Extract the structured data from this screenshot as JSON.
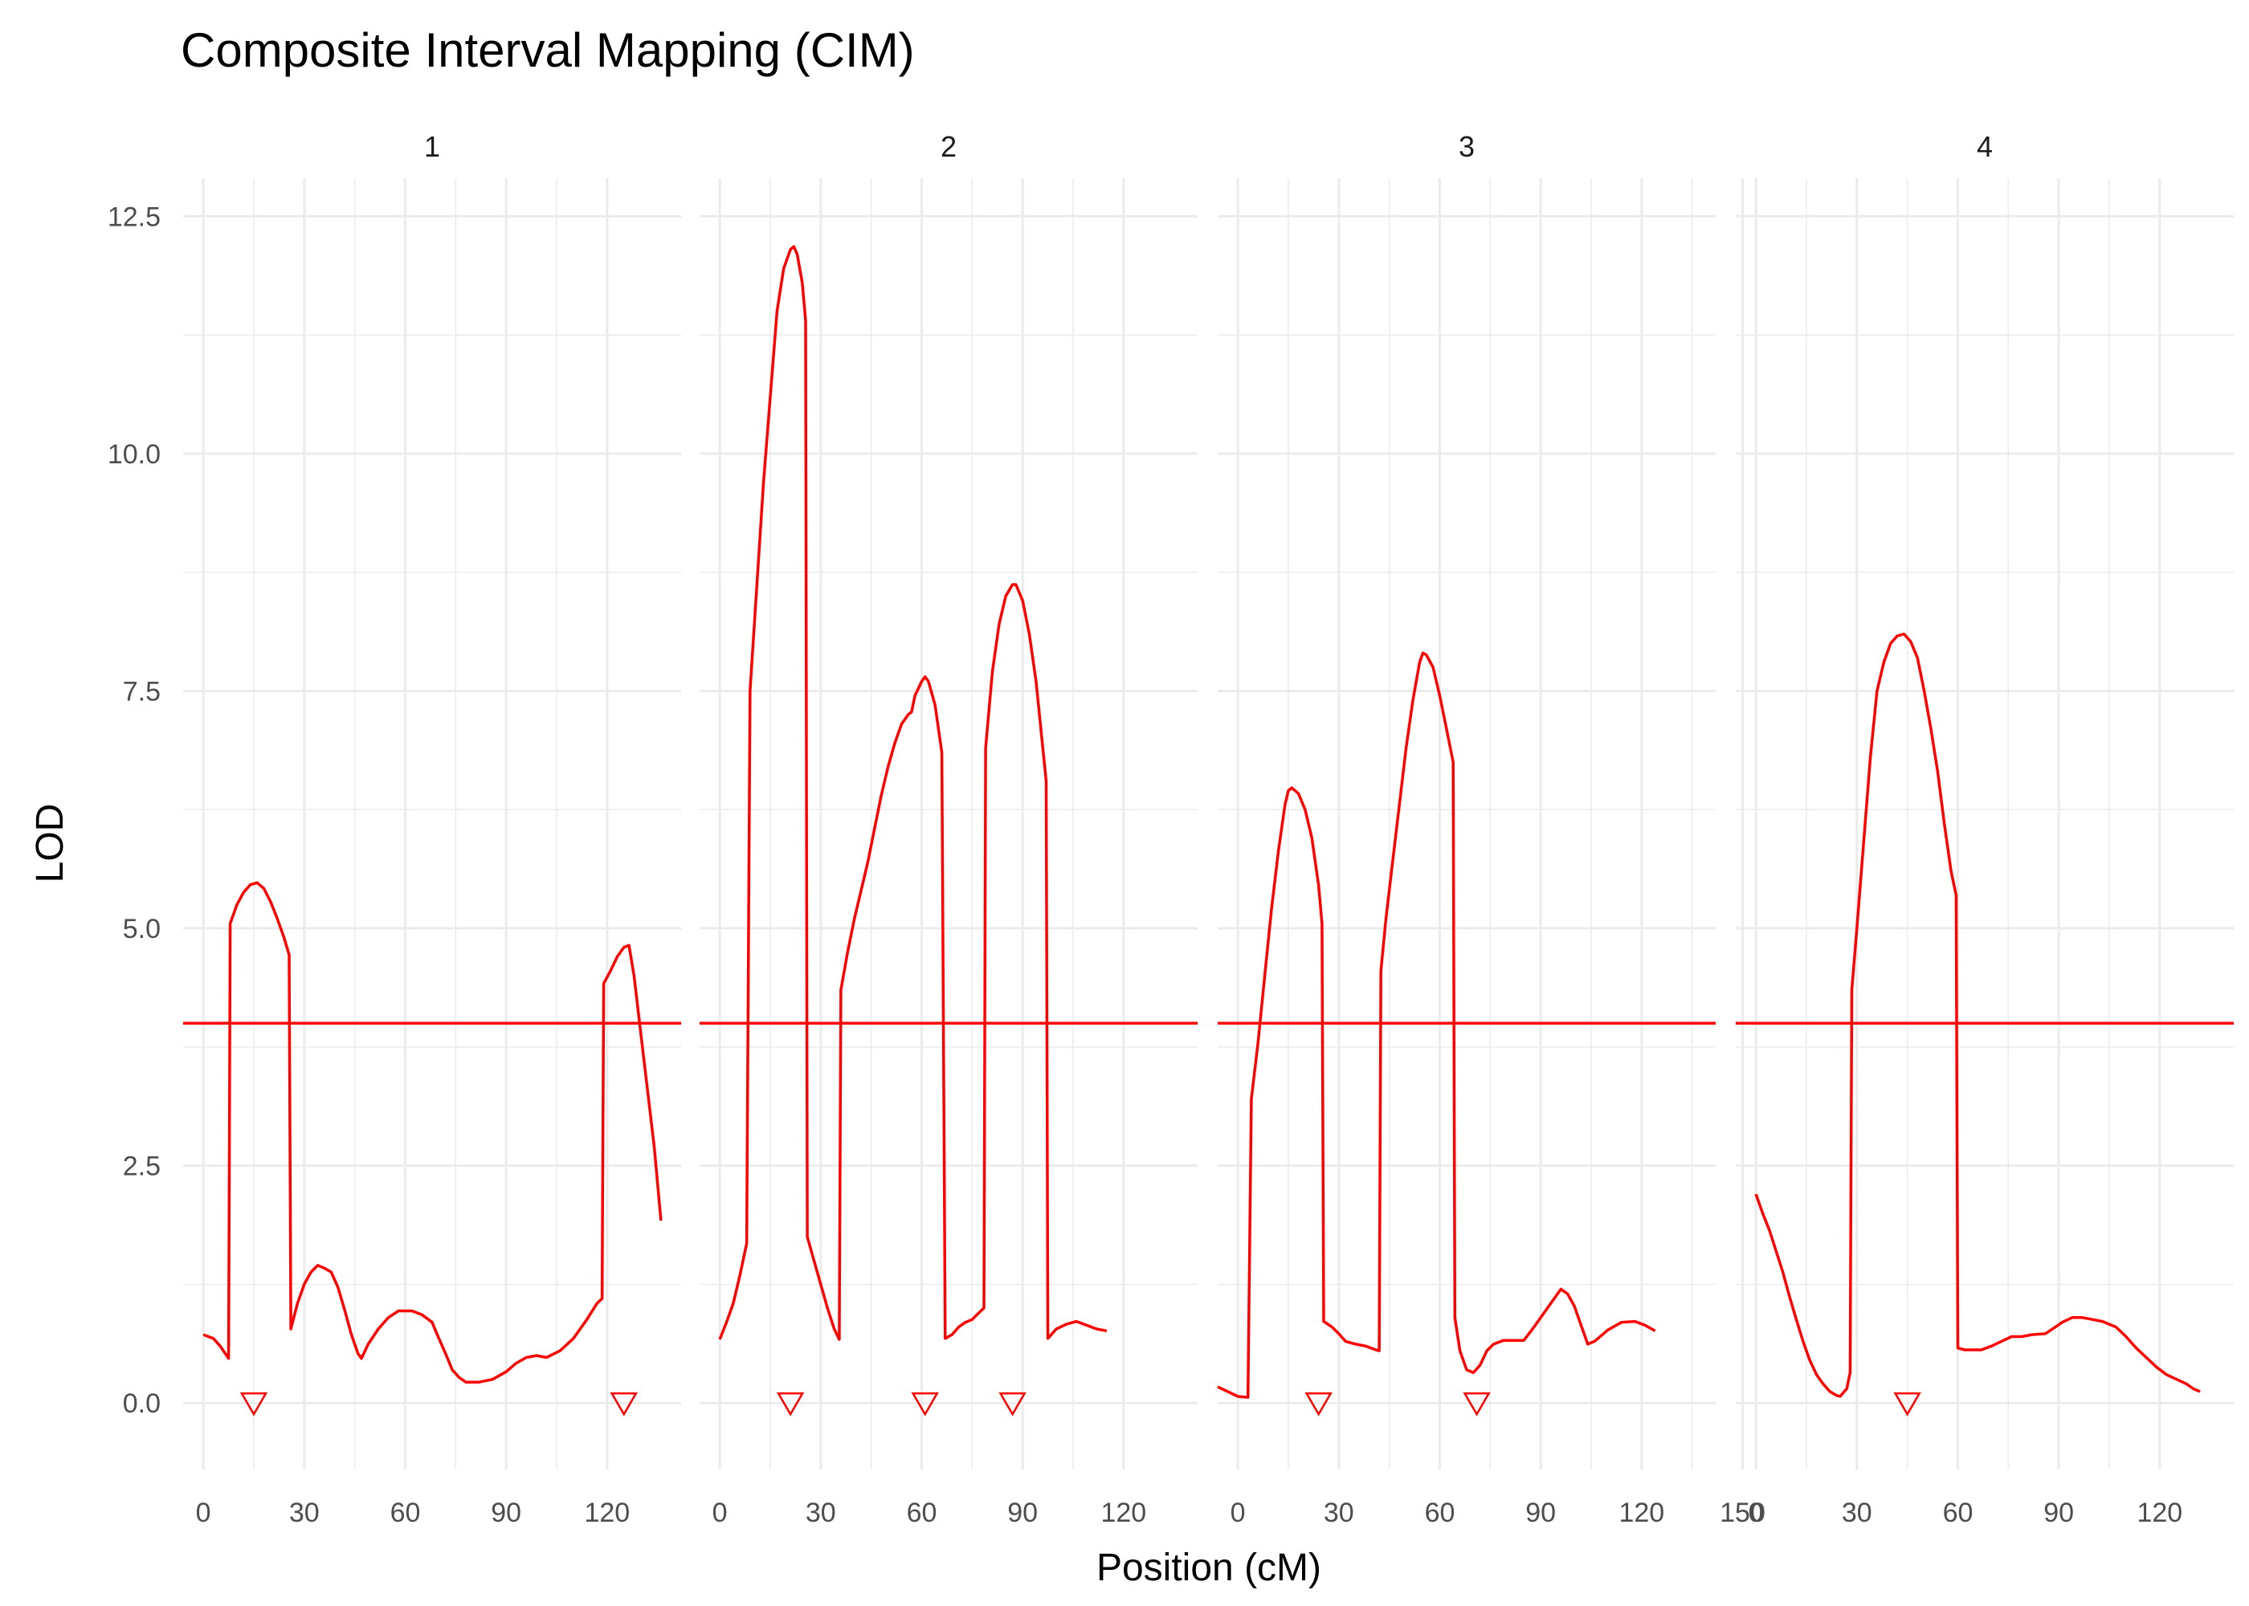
{
  "chart_data": {
    "type": "line",
    "title": "Composite Interval Mapping (CIM)",
    "xlabel": "Position (cM)",
    "ylabel": "LOD",
    "ylim": [
      -0.7,
      12.9
    ],
    "yticks": [
      0.0,
      2.5,
      5.0,
      7.5,
      10.0,
      12.5
    ],
    "ytick_labels": [
      "0.0",
      "2.5",
      "5.0",
      "7.5",
      "10.0",
      "12.5"
    ],
    "threshold": 4.0,
    "grid": true,
    "colors": {
      "line": "#ff0000",
      "grid": "#ebebeb",
      "text": "#4d4d4d"
    },
    "panels": [
      {
        "label": "1",
        "xlim": [
          -6,
          142
        ],
        "xticks": [
          0,
          30,
          60,
          90,
          120
        ],
        "xtick_labels": [
          "0",
          "30",
          "60",
          "90",
          "120"
        ],
        "markers": [
          15,
          125
        ],
        "points": [
          [
            0,
            0.72
          ],
          [
            3,
            0.68
          ],
          [
            5,
            0.6
          ],
          [
            7.5,
            0.47
          ],
          [
            8,
            5.05
          ],
          [
            10,
            5.25
          ],
          [
            12,
            5.38
          ],
          [
            14,
            5.46
          ],
          [
            16,
            5.48
          ],
          [
            18,
            5.42
          ],
          [
            20,
            5.28
          ],
          [
            22,
            5.1
          ],
          [
            24,
            4.9
          ],
          [
            25.5,
            4.72
          ],
          [
            26,
            0.78
          ],
          [
            28,
            1.05
          ],
          [
            30,
            1.25
          ],
          [
            32,
            1.38
          ],
          [
            34,
            1.45
          ],
          [
            36,
            1.42
          ],
          [
            38,
            1.38
          ],
          [
            40,
            1.22
          ],
          [
            42,
            0.98
          ],
          [
            44,
            0.72
          ],
          [
            46,
            0.52
          ],
          [
            47,
            0.47
          ],
          [
            49,
            0.62
          ],
          [
            52,
            0.78
          ],
          [
            55,
            0.9
          ],
          [
            58,
            0.97
          ],
          [
            62,
            0.97
          ],
          [
            65,
            0.93
          ],
          [
            68,
            0.85
          ],
          [
            70,
            0.68
          ],
          [
            72,
            0.52
          ],
          [
            74,
            0.35
          ],
          [
            76,
            0.27
          ],
          [
            78,
            0.22
          ],
          [
            82,
            0.22
          ],
          [
            86,
            0.25
          ],
          [
            90,
            0.33
          ],
          [
            93,
            0.42
          ],
          [
            96,
            0.48
          ],
          [
            99,
            0.5
          ],
          [
            102,
            0.48
          ],
          [
            106,
            0.55
          ],
          [
            110,
            0.68
          ],
          [
            114,
            0.88
          ],
          [
            117,
            1.05
          ],
          [
            118.5,
            1.1
          ],
          [
            119,
            4.42
          ],
          [
            121,
            4.55
          ],
          [
            123,
            4.7
          ],
          [
            125,
            4.8
          ],
          [
            126.5,
            4.82
          ],
          [
            128,
            4.5
          ],
          [
            130,
            3.9
          ],
          [
            132,
            3.3
          ],
          [
            134,
            2.7
          ],
          [
            136,
            1.92
          ]
        ]
      },
      {
        "label": "2",
        "xlim": [
          -6,
          142
        ],
        "xticks": [
          0,
          30,
          60,
          90,
          120
        ],
        "xtick_labels": [
          "0",
          "30",
          "60",
          "90",
          "120"
        ],
        "markers": [
          21,
          61,
          87
        ],
        "points": [
          [
            0,
            0.67
          ],
          [
            2,
            0.85
          ],
          [
            4,
            1.05
          ],
          [
            6,
            1.35
          ],
          [
            8,
            1.68
          ],
          [
            9,
            7.5
          ],
          [
            11,
            8.6
          ],
          [
            13,
            9.7
          ],
          [
            15,
            10.6
          ],
          [
            17,
            11.5
          ],
          [
            19,
            11.95
          ],
          [
            21,
            12.15
          ],
          [
            22,
            12.18
          ],
          [
            23,
            12.1
          ],
          [
            24.5,
            11.8
          ],
          [
            25.5,
            11.4
          ],
          [
            26,
            1.75
          ],
          [
            28,
            1.5
          ],
          [
            30,
            1.25
          ],
          [
            32,
            1.0
          ],
          [
            34,
            0.78
          ],
          [
            35.5,
            0.67
          ],
          [
            36,
            4.35
          ],
          [
            38,
            4.75
          ],
          [
            40,
            5.1
          ],
          [
            42,
            5.4
          ],
          [
            44,
            5.7
          ],
          [
            46,
            6.05
          ],
          [
            48,
            6.4
          ],
          [
            50,
            6.7
          ],
          [
            52,
            6.95
          ],
          [
            54,
            7.15
          ],
          [
            56,
            7.25
          ],
          [
            57,
            7.28
          ],
          [
            58,
            7.45
          ],
          [
            60,
            7.6
          ],
          [
            61,
            7.65
          ],
          [
            62,
            7.6
          ],
          [
            64,
            7.35
          ],
          [
            66,
            6.85
          ],
          [
            67,
            0.68
          ],
          [
            69,
            0.72
          ],
          [
            71,
            0.8
          ],
          [
            73,
            0.85
          ],
          [
            75,
            0.88
          ],
          [
            77,
            0.95
          ],
          [
            78.5,
            1.0
          ],
          [
            79,
            6.9
          ],
          [
            81,
            7.7
          ],
          [
            83,
            8.2
          ],
          [
            85,
            8.5
          ],
          [
            87,
            8.62
          ],
          [
            88,
            8.62
          ],
          [
            90,
            8.45
          ],
          [
            92,
            8.1
          ],
          [
            94,
            7.6
          ],
          [
            96,
            6.9
          ],
          [
            97,
            6.55
          ],
          [
            97.5,
            0.68
          ],
          [
            100,
            0.78
          ],
          [
            103,
            0.83
          ],
          [
            106,
            0.86
          ],
          [
            109,
            0.82
          ],
          [
            112,
            0.78
          ],
          [
            115,
            0.76
          ]
        ]
      },
      {
        "label": "3",
        "xlim": [
          -6,
          142
        ],
        "xticks": [
          0,
          30,
          60,
          90,
          120,
          150
        ],
        "xtick_labels": [
          "0",
          "30",
          "60",
          "90",
          "120",
          "150"
        ],
        "markers": [
          24,
          71
        ],
        "points": [
          [
            -6,
            0.17
          ],
          [
            -3,
            0.12
          ],
          [
            0,
            0.07
          ],
          [
            3,
            0.06
          ],
          [
            4,
            3.2
          ],
          [
            6,
            3.8
          ],
          [
            8,
            4.5
          ],
          [
            10,
            5.2
          ],
          [
            12,
            5.8
          ],
          [
            14,
            6.3
          ],
          [
            15,
            6.45
          ],
          [
            16,
            6.48
          ],
          [
            18,
            6.42
          ],
          [
            20,
            6.25
          ],
          [
            22,
            5.95
          ],
          [
            24,
            5.45
          ],
          [
            25,
            5.05
          ],
          [
            25.5,
            0.86
          ],
          [
            28,
            0.8
          ],
          [
            30,
            0.73
          ],
          [
            32,
            0.65
          ],
          [
            35,
            0.62
          ],
          [
            38,
            0.6
          ],
          [
            41,
            0.56
          ],
          [
            42,
            0.55
          ],
          [
            42.5,
            4.55
          ],
          [
            44,
            5.1
          ],
          [
            46,
            5.7
          ],
          [
            48,
            6.3
          ],
          [
            50,
            6.9
          ],
          [
            52,
            7.4
          ],
          [
            54,
            7.8
          ],
          [
            55,
            7.9
          ],
          [
            56,
            7.88
          ],
          [
            58,
            7.75
          ],
          [
            60,
            7.45
          ],
          [
            62,
            7.1
          ],
          [
            64,
            6.75
          ],
          [
            64.5,
            0.9
          ],
          [
            66,
            0.55
          ],
          [
            68,
            0.35
          ],
          [
            70,
            0.32
          ],
          [
            72,
            0.4
          ],
          [
            74,
            0.55
          ],
          [
            76,
            0.62
          ],
          [
            79,
            0.66
          ],
          [
            82,
            0.66
          ],
          [
            85,
            0.66
          ],
          [
            88,
            0.8
          ],
          [
            91,
            0.95
          ],
          [
            94,
            1.1
          ],
          [
            96,
            1.2
          ],
          [
            98,
            1.15
          ],
          [
            100,
            1.02
          ],
          [
            102,
            0.82
          ],
          [
            104,
            0.62
          ],
          [
            106,
            0.65
          ],
          [
            110,
            0.77
          ],
          [
            114,
            0.85
          ],
          [
            118,
            0.86
          ],
          [
            121,
            0.82
          ],
          [
            124,
            0.76
          ]
        ]
      },
      {
        "label": "4",
        "xlim": [
          -6,
          142
        ],
        "xticks": [
          0,
          30,
          60,
          90,
          120
        ],
        "xtick_labels": [
          "0",
          "30",
          "60",
          "90",
          "120"
        ],
        "markers": [
          45
        ],
        "points": [
          [
            0,
            2.2
          ],
          [
            2,
            2.0
          ],
          [
            4,
            1.82
          ],
          [
            6,
            1.6
          ],
          [
            8,
            1.38
          ],
          [
            10,
            1.12
          ],
          [
            12,
            0.88
          ],
          [
            14,
            0.65
          ],
          [
            16,
            0.45
          ],
          [
            18,
            0.3
          ],
          [
            20,
            0.2
          ],
          [
            22,
            0.12
          ],
          [
            24,
            0.08
          ],
          [
            25,
            0.07
          ],
          [
            27,
            0.15
          ],
          [
            28,
            0.32
          ],
          [
            28.5,
            4.35
          ],
          [
            30,
            5.0
          ],
          [
            32,
            5.9
          ],
          [
            34,
            6.8
          ],
          [
            36,
            7.5
          ],
          [
            38,
            7.8
          ],
          [
            40,
            8.0
          ],
          [
            42,
            8.08
          ],
          [
            44,
            8.1
          ],
          [
            46,
            8.02
          ],
          [
            48,
            7.85
          ],
          [
            50,
            7.5
          ],
          [
            52,
            7.1
          ],
          [
            54,
            6.65
          ],
          [
            56,
            6.1
          ],
          [
            58,
            5.6
          ],
          [
            59.5,
            5.35
          ],
          [
            60,
            0.58
          ],
          [
            62,
            0.56
          ],
          [
            64,
            0.56
          ],
          [
            67,
            0.56
          ],
          [
            70,
            0.6
          ],
          [
            73,
            0.65
          ],
          [
            76,
            0.7
          ],
          [
            79,
            0.7
          ],
          [
            82,
            0.72
          ],
          [
            86,
            0.73
          ],
          [
            89,
            0.8
          ],
          [
            91,
            0.85
          ],
          [
            94,
            0.9
          ],
          [
            97,
            0.9
          ],
          [
            100,
            0.88
          ],
          [
            103,
            0.86
          ],
          [
            107,
            0.8
          ],
          [
            110,
            0.7
          ],
          [
            113,
            0.58
          ],
          [
            116,
            0.48
          ],
          [
            119,
            0.38
          ],
          [
            122,
            0.3
          ],
          [
            125,
            0.25
          ],
          [
            128,
            0.2
          ],
          [
            130,
            0.15
          ],
          [
            132,
            0.12
          ]
        ]
      }
    ]
  }
}
